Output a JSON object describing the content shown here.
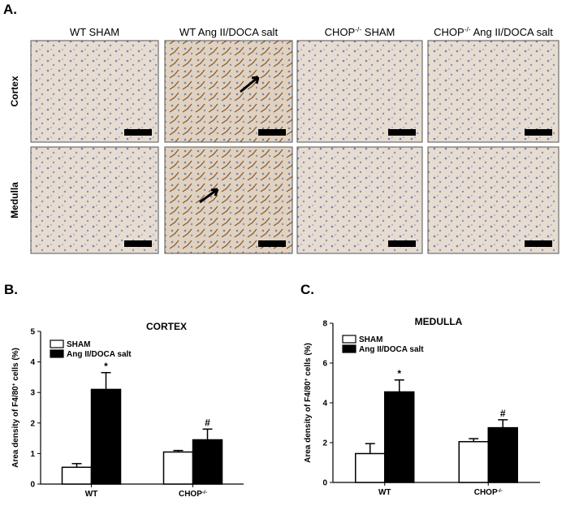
{
  "panel_a": {
    "label": "A.",
    "columns": [
      [
        "WT SHAM"
      ],
      [
        "WT Ang II/DOCA salt"
      ],
      [
        "CHOP",
        "-/-",
        " SHAM"
      ],
      [
        "CHOP",
        "-/-",
        " Ang II/DOCA salt"
      ]
    ],
    "rows": [
      "Cortex",
      "Medulla"
    ]
  },
  "chart_data": [
    {
      "type": "bar",
      "panel_label": "B.",
      "title": "CORTEX",
      "ylabel": [
        "Area density of F4/80",
        "+",
        " cells (%)"
      ],
      "categories": [
        [
          "WT"
        ],
        [
          "CHOP",
          "-/-"
        ]
      ],
      "series": [
        {
          "name": "SHAM",
          "color": "#ffffff",
          "values": [
            0.55,
            1.05
          ],
          "errors": [
            0.12,
            0.05
          ]
        },
        {
          "name": "Ang II/DOCA salt",
          "color": "#000000",
          "values": [
            3.1,
            1.45
          ],
          "errors": [
            0.55,
            0.35
          ],
          "annotations": [
            "*",
            "#"
          ]
        }
      ],
      "ylim": [
        0,
        5
      ],
      "yticks": [
        0,
        1,
        2,
        3,
        4,
        5
      ]
    },
    {
      "type": "bar",
      "panel_label": "C.",
      "title": "MEDULLA",
      "ylabel": [
        "Area density of F4/80",
        "+",
        " cells (%)"
      ],
      "categories": [
        [
          "WT"
        ],
        [
          "CHOP",
          "-/-"
        ]
      ],
      "series": [
        {
          "name": "SHAM",
          "color": "#ffffff",
          "values": [
            1.45,
            2.05
          ],
          "errors": [
            0.5,
            0.15
          ]
        },
        {
          "name": "Ang II/DOCA salt",
          "color": "#000000",
          "values": [
            4.55,
            2.75
          ],
          "errors": [
            0.6,
            0.4
          ],
          "annotations": [
            "*",
            "#"
          ]
        }
      ],
      "ylim": [
        0,
        8
      ],
      "yticks": [
        0,
        2,
        4,
        6,
        8
      ]
    }
  ]
}
